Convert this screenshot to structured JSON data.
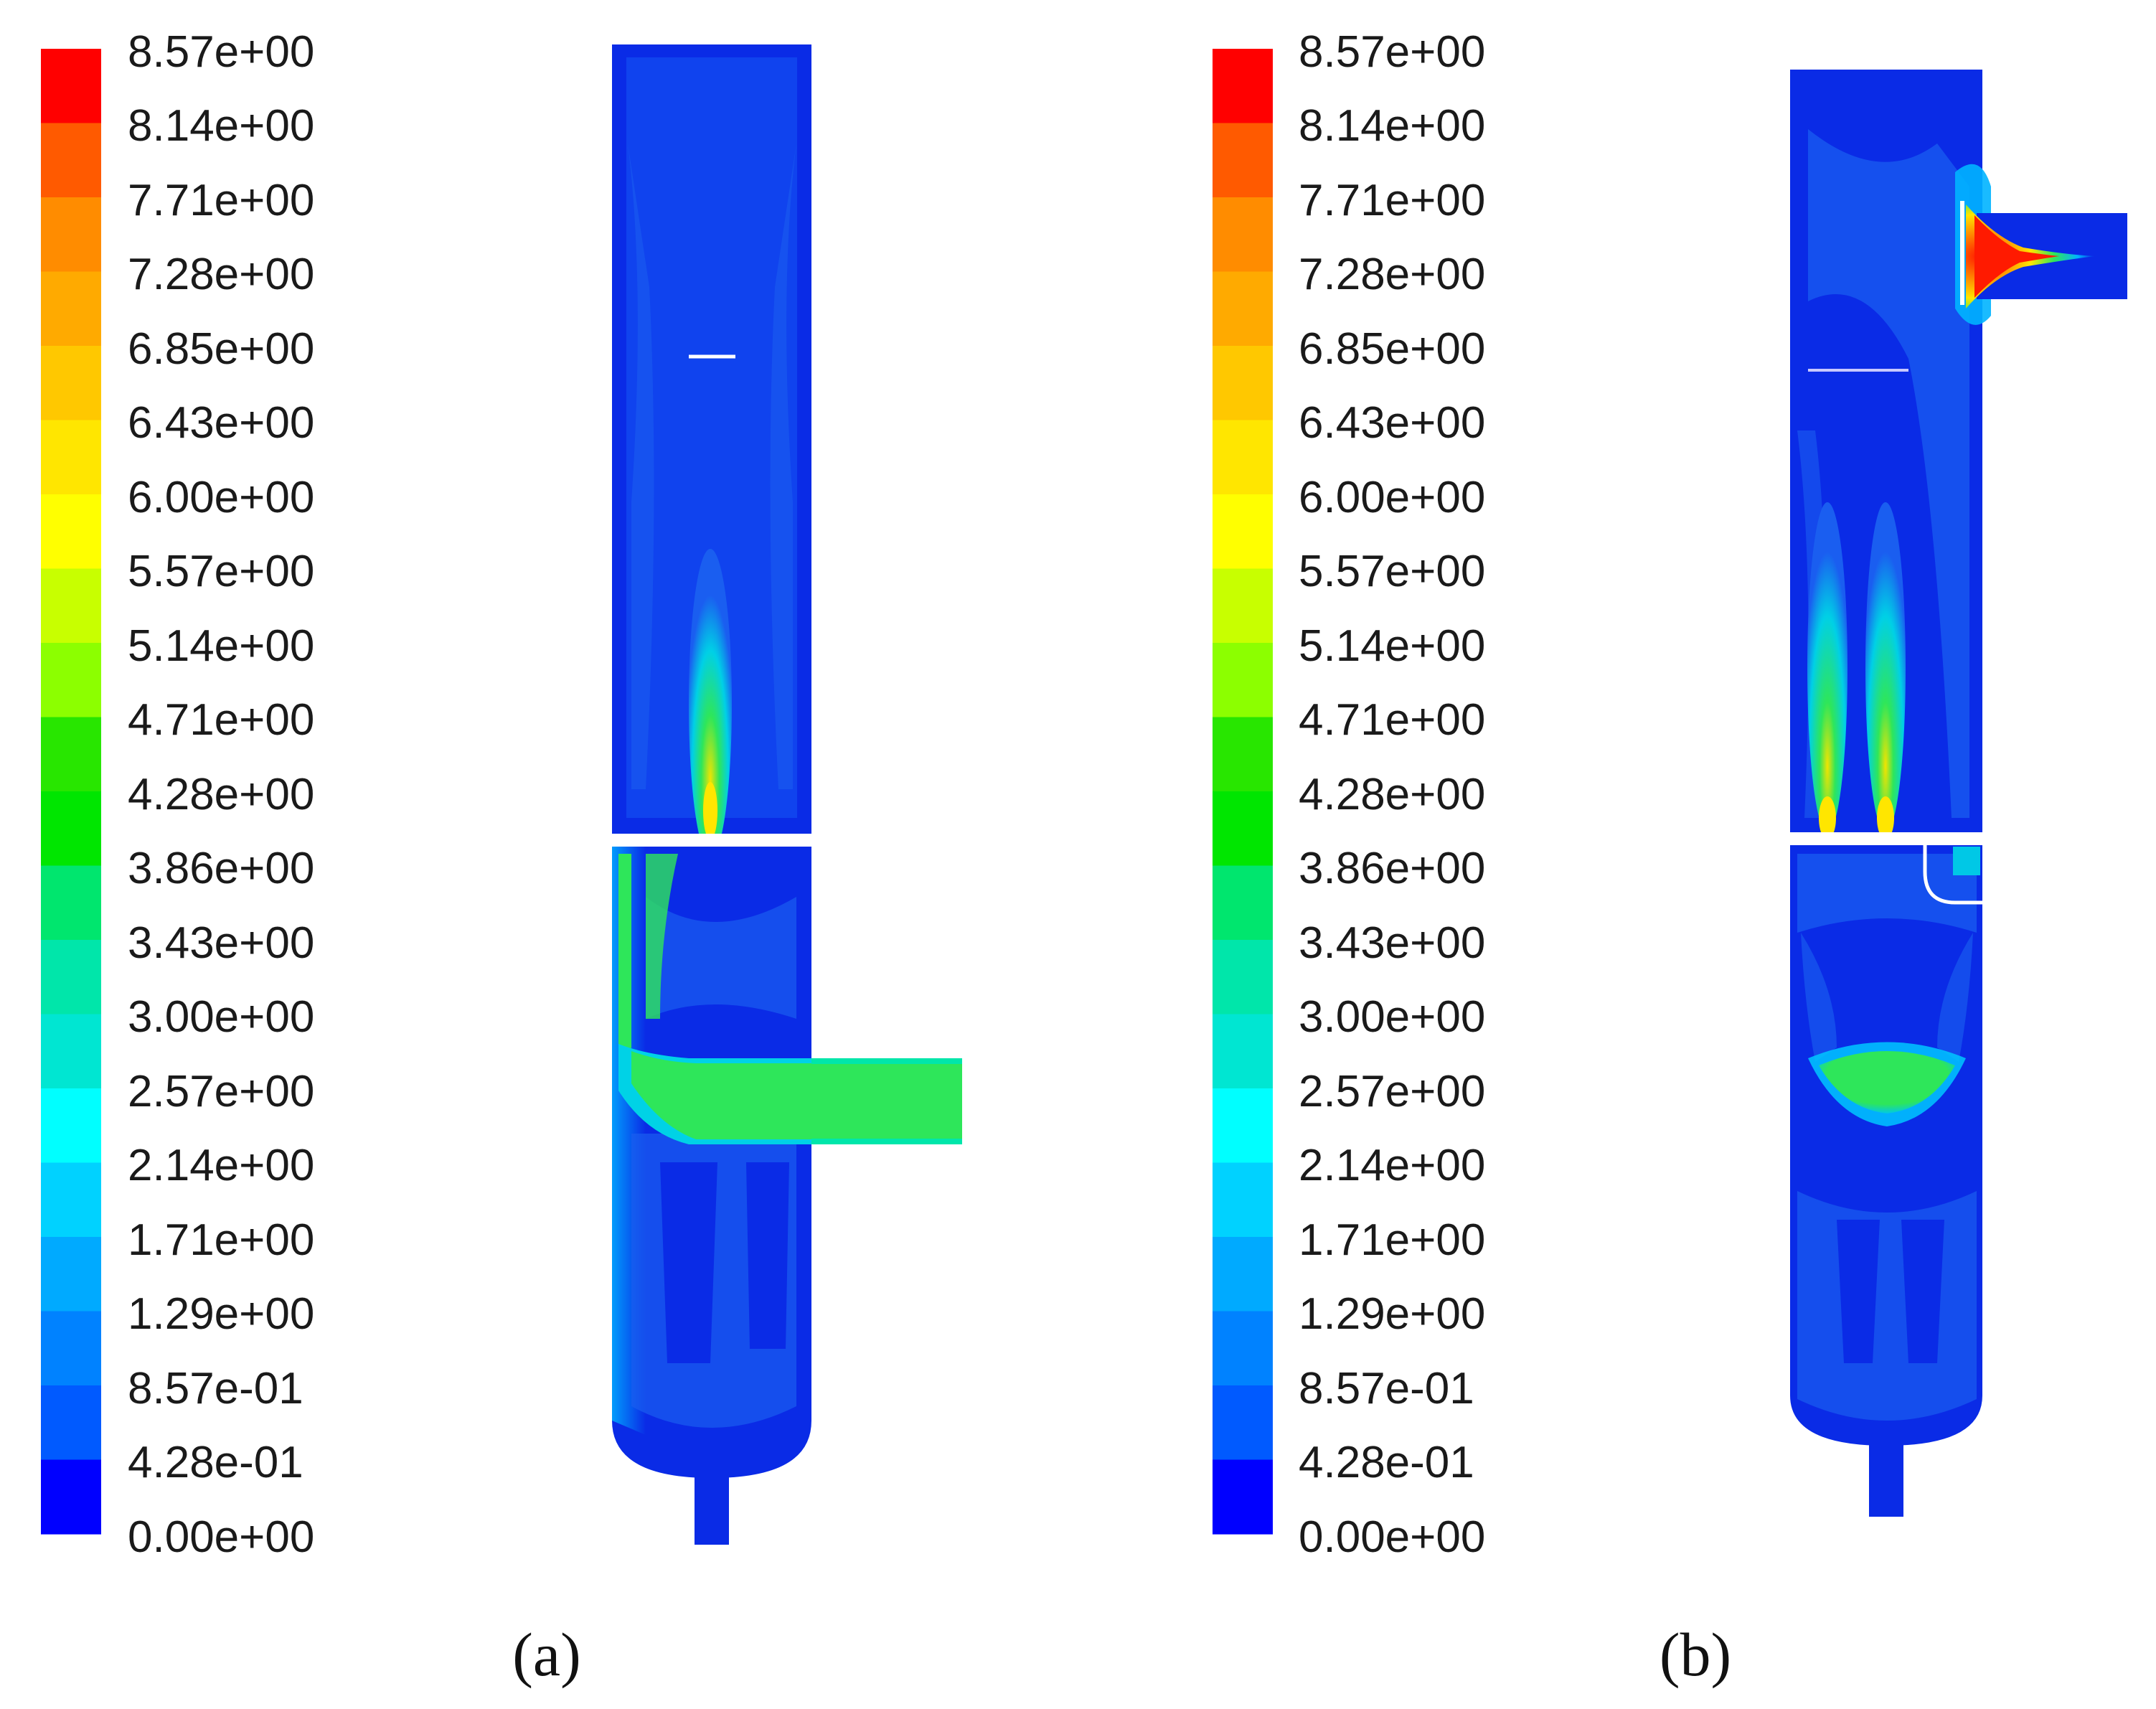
{
  "figure": {
    "panels": [
      {
        "id": "a",
        "caption": "(a)",
        "colorbar": {
          "tick_labels": [
            "8.57e+00",
            "8.14e+00",
            "7.71e+00",
            "7.28e+00",
            "6.85e+00",
            "6.43e+00",
            "6.00e+00",
            "5.57e+00",
            "5.14e+00",
            "4.71e+00",
            "4.28e+00",
            "3.86e+00",
            "3.43e+00",
            "3.00e+00",
            "2.57e+00",
            "2.14e+00",
            "1.71e+00",
            "1.29e+00",
            "8.57e-01",
            "4.28e-01",
            "0.00e+00"
          ]
        }
      },
      {
        "id": "b",
        "caption": "(b)",
        "colorbar": {
          "tick_labels": [
            "8.57e+00",
            "8.14e+00",
            "7.71e+00",
            "7.28e+00",
            "6.85e+00",
            "6.43e+00",
            "6.00e+00",
            "5.57e+00",
            "5.14e+00",
            "4.71e+00",
            "4.28e+00",
            "3.86e+00",
            "3.43e+00",
            "3.00e+00",
            "2.57e+00",
            "2.14e+00",
            "1.71e+00",
            "1.29e+00",
            "8.57e-01",
            "4.28e-01",
            "0.00e+00"
          ]
        }
      }
    ],
    "colormap": [
      "#ff0000",
      "#ff5a00",
      "#ff8c00",
      "#ffaa00",
      "#ffc800",
      "#ffe600",
      "#ffff00",
      "#c8ff00",
      "#8cff00",
      "#28e600",
      "#00e600",
      "#00e66e",
      "#00e6aa",
      "#00e6d2",
      "#00ffff",
      "#00d2ff",
      "#00aaff",
      "#0082ff",
      "#005aff",
      "#0000ff"
    ],
    "colors": {
      "domain_blue": "#0a2be6",
      "jet_green": "#2ee65a",
      "jet_yellow": "#ffe600",
      "jet_red": "#ff1a00",
      "text": "#1a1a1a"
    }
  }
}
